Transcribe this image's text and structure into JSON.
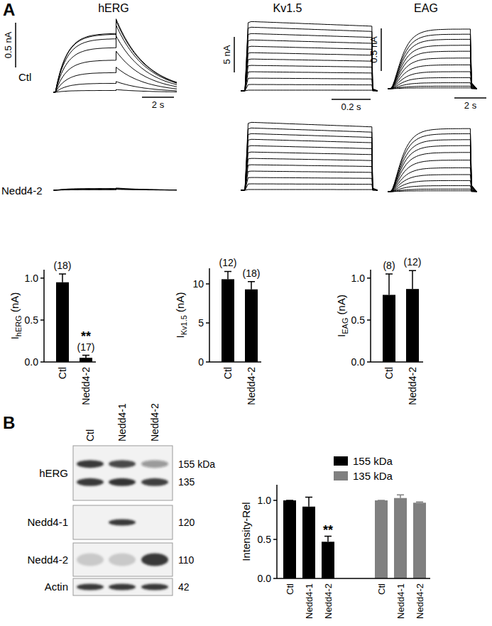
{
  "panel_labels": [
    "A",
    "B"
  ],
  "row_labels": [
    "Ctl",
    "Nedd4-2"
  ],
  "traces": [
    {
      "title": "hERG",
      "kind": "herg",
      "step_duration": 3.8,
      "tail_duration": 3.8,
      "scale_current": {
        "value": 0.5,
        "label": "0.5 nA"
      },
      "scale_time": {
        "value": 2,
        "label": "2 s"
      },
      "rows": [
        {
          "steps": [
            0.02,
            0.1,
            0.22,
            0.36,
            0.5,
            0.6,
            0.65,
            0.66
          ],
          "tails": [
            0.03,
            0.12,
            0.28,
            0.46,
            0.63,
            0.75,
            0.8,
            0.82
          ]
        },
        {
          "steps": [
            0.005,
            0.01,
            0.015,
            0.02
          ],
          "tails": [
            0.01,
            0.015,
            0.02,
            0.025
          ]
        }
      ]
    },
    {
      "title": "Kv1.5",
      "kind": "kv",
      "step_duration": 0.65,
      "scale_current": {
        "value": 5,
        "label": "5 nA"
      },
      "scale_time": {
        "value": 0.2,
        "label": "0.2 s"
      },
      "rows": [
        {
          "steps": [
            0.1,
            0.9,
            1.8,
            2.7,
            3.6,
            4.5,
            5.4,
            6.3,
            7.2,
            8.1,
            9.0,
            9.8
          ]
        },
        {
          "steps": [
            0.1,
            0.9,
            1.8,
            2.7,
            3.6,
            4.5,
            5.4,
            6.3,
            7.2,
            8.0,
            8.8,
            9.6
          ]
        }
      ]
    },
    {
      "title": "EAG",
      "kind": "eag",
      "step_duration": 5,
      "scale_current": {
        "value": 0.5,
        "label": "0.5 nA"
      },
      "scale_time": {
        "value": 2,
        "label": "2 s"
      },
      "rows": [
        {
          "steps": [
            0.01,
            0.03,
            0.07,
            0.13,
            0.2,
            0.28,
            0.36,
            0.44,
            0.51,
            0.58,
            0.64,
            0.7
          ]
        },
        {
          "steps": [
            0.01,
            0.03,
            0.07,
            0.13,
            0.2,
            0.28,
            0.37,
            0.46,
            0.54,
            0.61,
            0.68,
            0.74
          ]
        }
      ]
    }
  ],
  "chart_data": [
    {
      "type": "bar",
      "categories": [
        "Ctl",
        "Nedd4-2"
      ],
      "values": [
        0.95,
        0.05
      ],
      "errors": [
        0.1,
        0.03
      ],
      "color": "#000000",
      "ylim": [
        0,
        1.1
      ],
      "yticks": [
        {
          "value": 0,
          "label": "0.0"
        },
        {
          "value": 0.5,
          "label": "0.5"
        },
        {
          "value": 1,
          "label": "1.0"
        }
      ],
      "ylabel": {
        "text": "I",
        "subscript": "hERG",
        "suffix": " (nA)"
      },
      "n_labels": [
        "(18)",
        "(17)"
      ],
      "significance": [
        null,
        "**"
      ]
    },
    {
      "type": "bar",
      "categories": [
        "Ctl",
        "Nedd4-2"
      ],
      "values": [
        10.6,
        9.3
      ],
      "errors": [
        1.0,
        1.0
      ],
      "color": "#000000",
      "ylim": [
        0,
        12
      ],
      "yticks": [
        0,
        5,
        10
      ],
      "ylabel": {
        "text": "I",
        "subscript": "Kv1.5",
        "suffix": " (nA)"
      },
      "n_labels": [
        "(12)",
        "(18)"
      ],
      "significance": [
        null,
        null
      ]
    },
    {
      "type": "bar",
      "categories": [
        "Ctl",
        "Nedd4-2"
      ],
      "values": [
        0.8,
        0.87
      ],
      "errors": [
        0.25,
        0.22
      ],
      "color": "#000000",
      "ylim": [
        0,
        1.1
      ],
      "yticks": [
        {
          "value": 0,
          "label": "0.0"
        },
        {
          "value": 0.5,
          "label": "0.5"
        },
        {
          "value": 1,
          "label": "1.0"
        }
      ],
      "ylabel": {
        "text": "I",
        "subscript": "EAG",
        "suffix": " (nA)"
      },
      "n_labels": [
        "(8)",
        "(12)"
      ],
      "significance": [
        null,
        null
      ]
    },
    {
      "type": "bar",
      "categories": [
        "Ctl",
        "Nedd4-1",
        "Nedd4-2",
        "Ctl",
        "Nedd4-1",
        "Nedd4-2"
      ],
      "series": [
        {
          "name": "155 kDa",
          "color": "#000000",
          "values": [
            1,
            0.92,
            0.47,
            null,
            null,
            null
          ],
          "errors": [
            0,
            0.12,
            0.07,
            null,
            null,
            null
          ]
        },
        {
          "name": "135 kDa",
          "color": "#808080",
          "values": [
            null,
            null,
            null,
            1,
            1.03,
            0.97
          ],
          "errors": [
            null,
            null,
            null,
            0,
            0.04,
            0.01
          ]
        }
      ],
      "ylim": [
        0,
        1.2
      ],
      "yticks": [
        {
          "value": 0,
          "label": "0.0"
        },
        {
          "value": 0.5,
          "label": "0.5"
        },
        {
          "value": 1,
          "label": "1.0"
        }
      ],
      "ylabel": {
        "text": "Intensity-Rel"
      },
      "legend": "top-right",
      "significance": [
        null,
        null,
        "**",
        null,
        null,
        null
      ]
    }
  ],
  "blot": {
    "lanes": [
      "Ctl",
      "Nedd4-1",
      "Nedd4-2"
    ],
    "rows": [
      {
        "label": "hERG",
        "kda": [
          "155 kDa",
          "135"
        ],
        "bands": [
          [
            1,
            0.92,
            0.47
          ],
          [
            1,
            1.03,
            0.97
          ]
        ]
      },
      {
        "label": "Nedd4-1",
        "kda": [
          "120"
        ],
        "bands": [
          [
            0,
            1,
            0
          ]
        ]
      },
      {
        "label": "Nedd4-2",
        "kda": [
          "110"
        ],
        "bands": [
          [
            0.2,
            0.2,
            1
          ]
        ]
      },
      {
        "label": "Actin",
        "kda": [
          "42"
        ],
        "bands": [
          [
            1,
            1,
            1
          ]
        ]
      }
    ]
  }
}
